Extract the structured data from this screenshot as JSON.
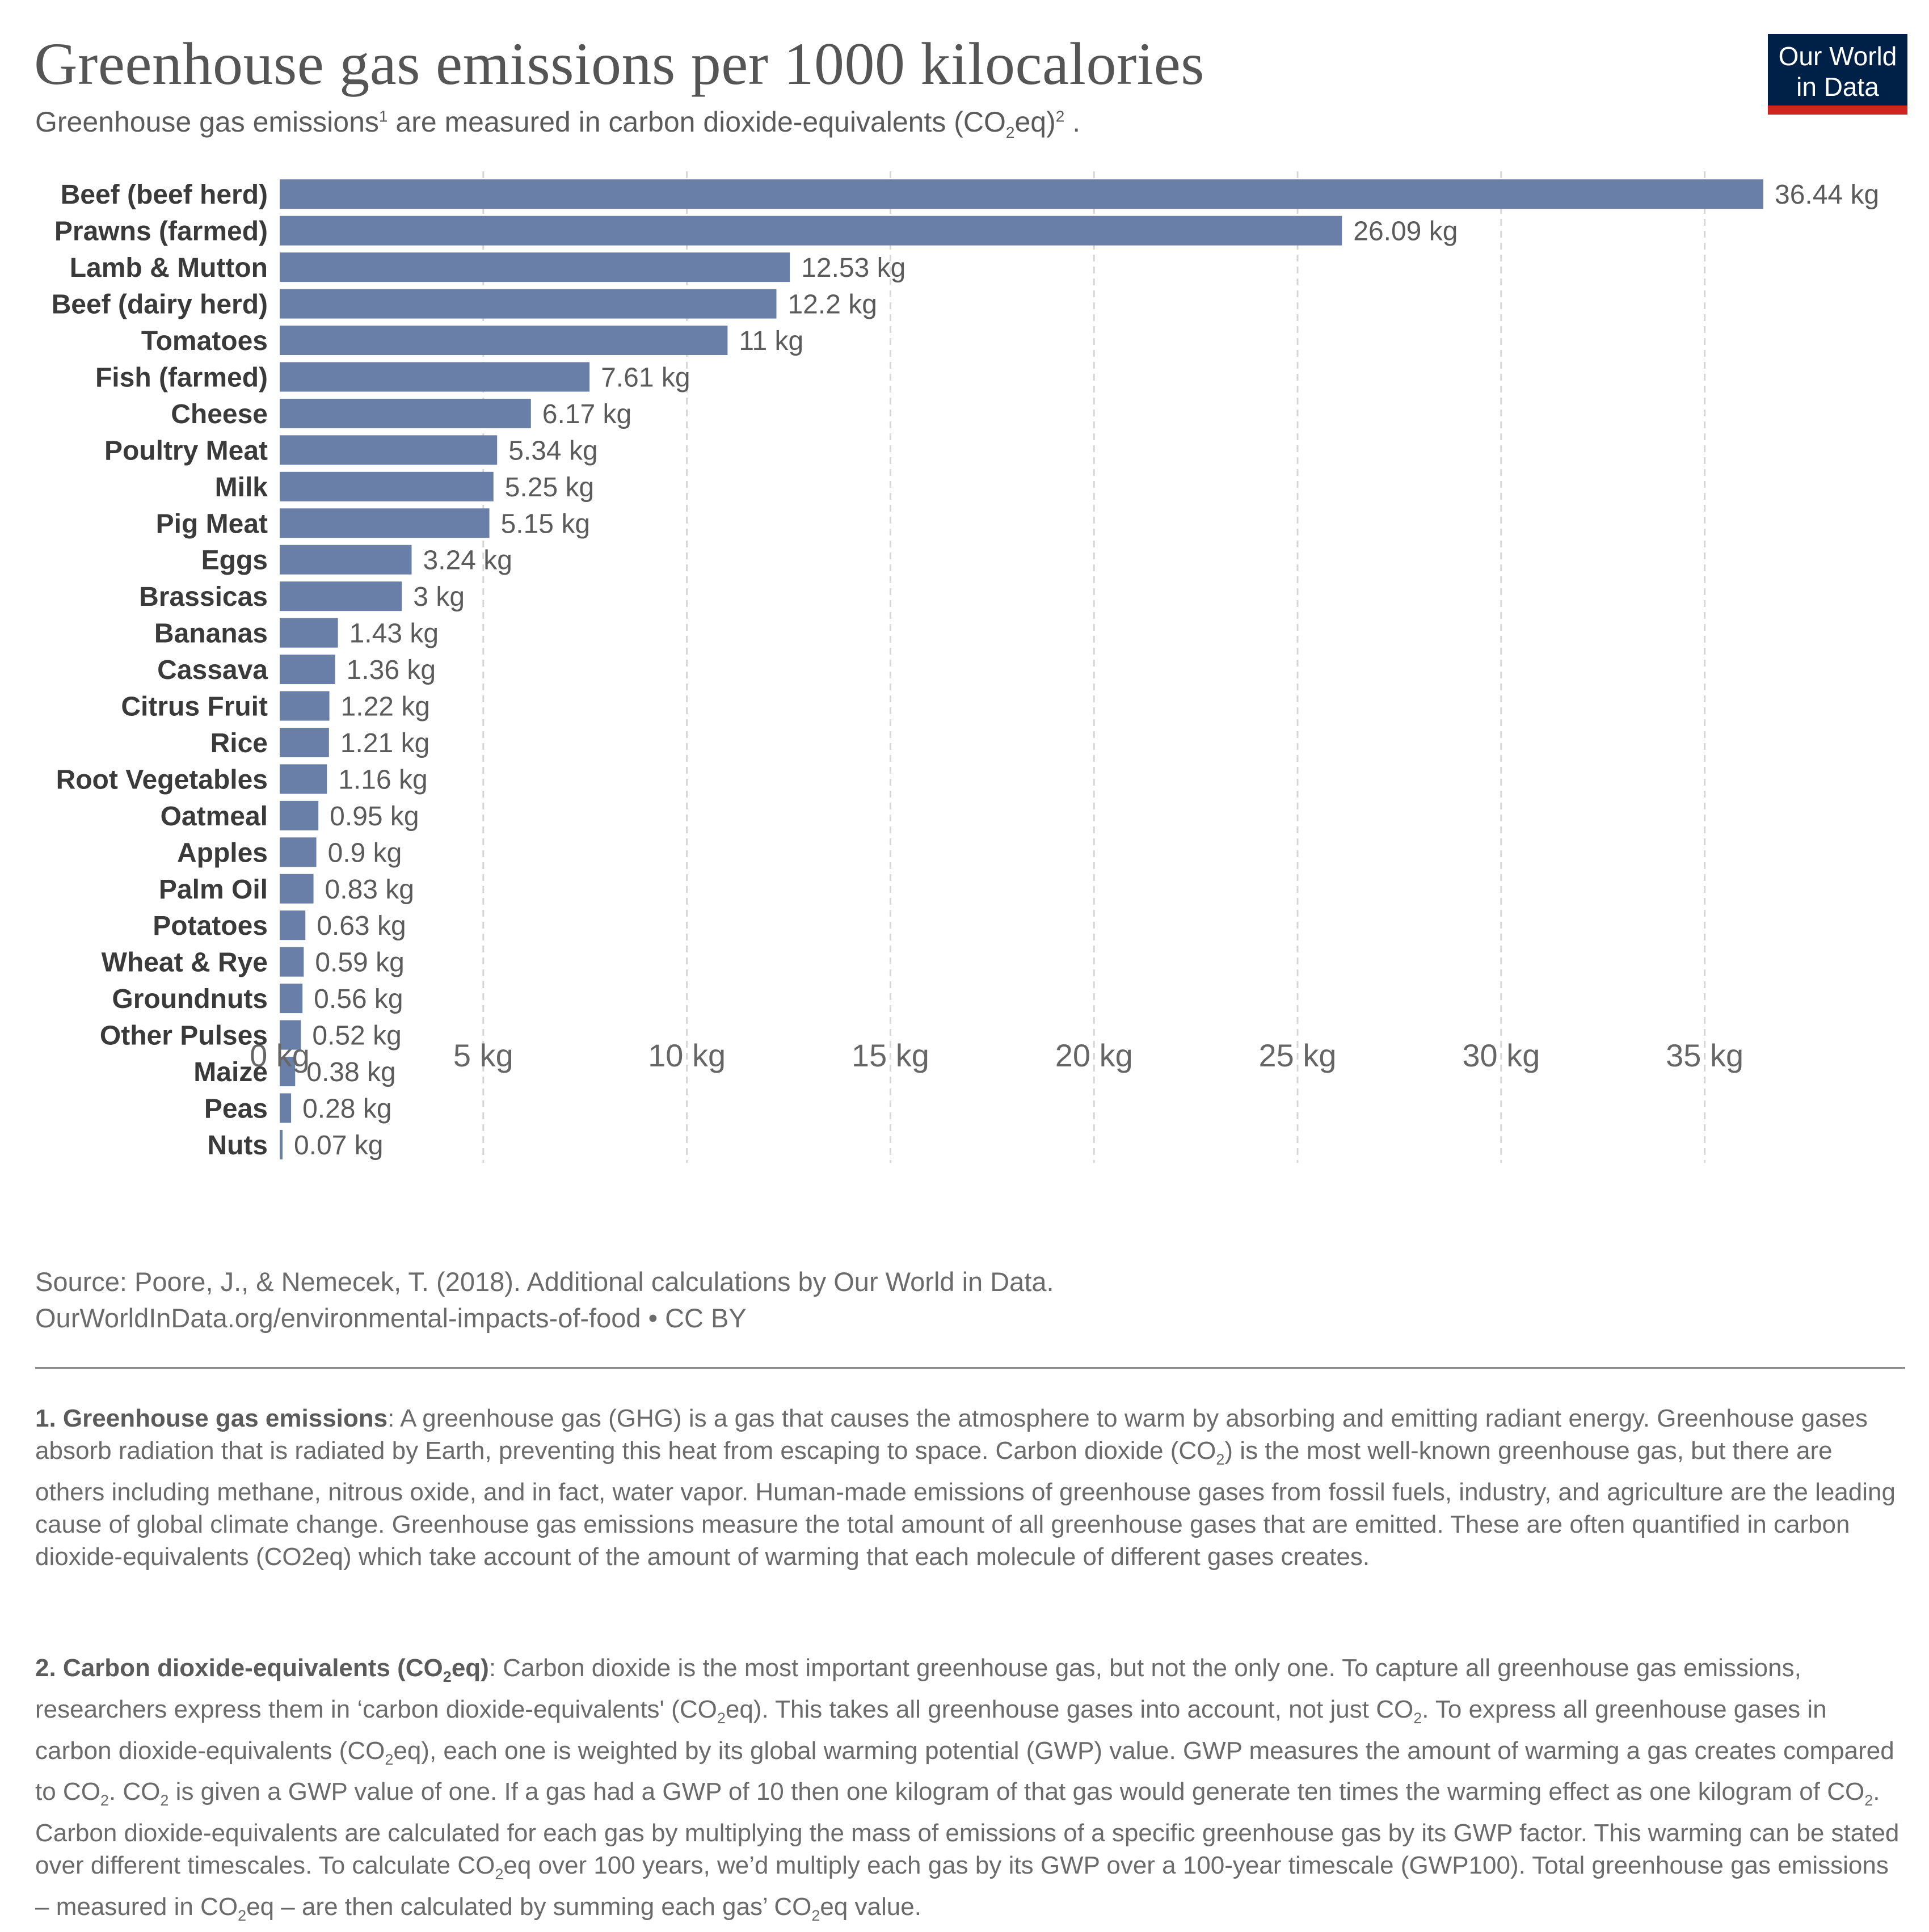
{
  "header": {
    "title": "Greenhouse gas emissions per 1000 kilocalories",
    "subtitle_part1": "Greenhouse gas emissions",
    "subtitle_sup1": "1",
    "subtitle_part2": " are measured in carbon dioxide-equivalents (CO",
    "subtitle_sub": "2",
    "subtitle_part3": "eq)",
    "subtitle_sup2": "2",
    "subtitle_part4": " ."
  },
  "logo": {
    "line1": "Our World",
    "line2": "in Data",
    "bg_color": "#002147",
    "bar_color": "#ce261e"
  },
  "chart_data": {
    "type": "bar",
    "orientation": "horizontal",
    "title": "Greenhouse gas emissions per 1000 kilocalories",
    "unit": "kg",
    "categories": [
      "Beef (beef herd)",
      "Prawns (farmed)",
      "Lamb & Mutton",
      "Beef (dairy herd)",
      "Tomatoes",
      "Fish (farmed)",
      "Cheese",
      "Poultry Meat",
      "Milk",
      "Pig Meat",
      "Eggs",
      "Brassicas",
      "Bananas",
      "Cassava",
      "Citrus Fruit",
      "Rice",
      "Root Vegetables",
      "Oatmeal",
      "Apples",
      "Palm Oil",
      "Potatoes",
      "Wheat & Rye",
      "Groundnuts",
      "Other Pulses",
      "Maize",
      "Peas",
      "Nuts"
    ],
    "values": [
      36.44,
      26.09,
      12.53,
      12.2,
      11,
      7.61,
      6.17,
      5.34,
      5.25,
      5.15,
      3.24,
      3,
      1.43,
      1.36,
      1.22,
      1.21,
      1.16,
      0.95,
      0.9,
      0.83,
      0.63,
      0.59,
      0.56,
      0.52,
      0.38,
      0.28,
      0.07
    ],
    "value_labels": [
      "36.44 kg",
      "26.09 kg",
      "12.53 kg",
      "12.2 kg",
      "11 kg",
      "7.61 kg",
      "6.17 kg",
      "5.34 kg",
      "5.25 kg",
      "5.15 kg",
      "3.24 kg",
      "3 kg",
      "1.43 kg",
      "1.36 kg",
      "1.22 kg",
      "1.21 kg",
      "1.16 kg",
      "0.95 kg",
      "0.9 kg",
      "0.83 kg",
      "0.63 kg",
      "0.59 kg",
      "0.56 kg",
      "0.52 kg",
      "0.38 kg",
      "0.28 kg",
      "0.07 kg"
    ],
    "xticks": [
      0,
      5,
      10,
      15,
      20,
      25,
      30,
      35
    ],
    "xtick_labels": [
      "0 kg",
      "5 kg",
      "10 kg",
      "15 kg",
      "20 kg",
      "25 kg",
      "30 kg",
      "35 kg"
    ],
    "xlim": [
      0,
      36.44
    ],
    "grid": "vertical dashed",
    "bar_color": "#6a7fa8",
    "xlabel": "",
    "ylabel": ""
  },
  "source": {
    "line1": "Source: Poore, J., & Nemecek, T. (2018). Additional calculations by Our World in Data.",
    "line2": "OurWorldInData.org/environmental-impacts-of-food • CC BY"
  },
  "notes": {
    "n1_title": "1. Greenhouse gas emissions",
    "n1_text_a": ": A greenhouse gas (GHG) is a gas that causes the atmosphere to warm by absorbing and emitting radiant energy. Greenhouse gases absorb radiation that is radiated by Earth, preventing this heat from escaping to space. Carbon dioxide (CO",
    "n1_text_b": ") is the most well-known greenhouse gas, but there are others including methane, nitrous oxide, and in fact, water vapor. Human-made emissions of greenhouse gases from fossil fuels, industry, and agriculture are the leading cause of global climate change. Greenhouse gas emissions measure the total amount of all greenhouse gases that are emitted. These are often quantified in carbon dioxide-equivalents (CO2eq) which take account of the amount of warming that each molecule of different gases creates.",
    "n2_title_a": "2. Carbon dioxide-equivalents (CO",
    "n2_title_b": "eq)",
    "n2_t1": ": Carbon dioxide is the most important greenhouse gas, but not the only one. To capture all greenhouse gas emissions, researchers express them in ‘carbon dioxide-equivalents' (CO",
    "n2_t2": "eq). This takes all greenhouse gases into account, not just CO",
    "n2_t3": ". To express all greenhouse gases in carbon dioxide-equivalents (CO",
    "n2_t4": "eq), each one is weighted by its global warming potential (GWP) value. GWP measures the amount of warming a gas creates compared to CO",
    "n2_t5": ". CO",
    "n2_t6": " is given a GWP value of one. If a gas had a GWP of 10 then one kilogram of that gas would generate ten times the warming effect as one kilogram of CO",
    "n2_t7": ". Carbon dioxide-equivalents are calculated for each gas by multiplying the mass of emissions of a specific greenhouse gas by its GWP factor. This warming can be stated over different timescales. To calculate CO",
    "n2_t8": "eq over 100 years, we’d multiply each gas by its GWP over a 100-year timescale (GWP100). Total greenhouse gas emissions – measured in CO",
    "n2_t9": "eq – are then calculated by summing each gas’ CO",
    "n2_t10": "eq value.",
    "sub2": "2"
  }
}
